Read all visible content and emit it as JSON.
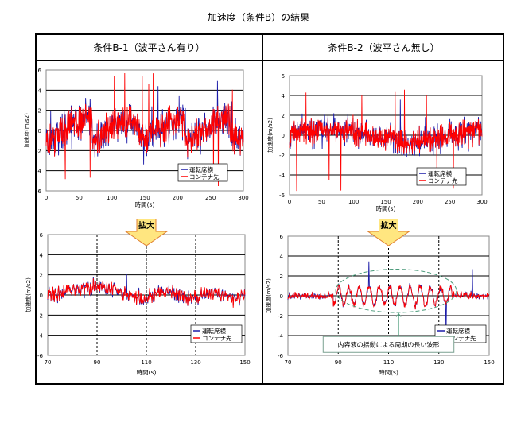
{
  "title": "加速度（条件B）の結果",
  "headers": [
    "条件B-1（波平さん有り）",
    "条件B-2（波平さん無し）"
  ],
  "zoom_label": "拡大",
  "chart_data": [
    {
      "type": "line",
      "panel": "B-1 full",
      "xlabel": "時間(s)",
      "ylabel": "加速度(m/s2)",
      "xlim": [
        0,
        300
      ],
      "ylim": [
        -6,
        6
      ],
      "xticks": [
        0,
        50,
        100,
        150,
        200,
        250,
        300
      ],
      "yticks": [
        -6,
        -4,
        -2,
        0,
        2,
        4,
        6
      ],
      "grid": "horizontal",
      "legend": "bottom-right",
      "series": [
        {
          "name": "運転席横",
          "color": "#1a1aa8"
        },
        {
          "name": "コンテナ先",
          "color": "#ff0000"
        }
      ]
    },
    {
      "type": "line",
      "panel": "B-2 full",
      "xlabel": "時間(s)",
      "ylabel": "加速度(m/s2)",
      "xlim": [
        0,
        300
      ],
      "ylim": [
        -6,
        6
      ],
      "xticks": [
        0,
        50,
        100,
        150,
        200,
        250,
        300
      ],
      "yticks": [
        -6,
        -4,
        -2,
        0,
        2,
        4,
        6
      ],
      "grid": "horizontal",
      "legend": "bottom-right",
      "series": [
        {
          "name": "運転席横",
          "color": "#1a1aa8"
        },
        {
          "name": "コンテナ先",
          "color": "#ff0000"
        }
      ]
    },
    {
      "type": "line",
      "panel": "B-1 zoom",
      "xlabel": "時間(s)",
      "ylabel": "加速度(m/s2)",
      "xlim": [
        70,
        150
      ],
      "ylim": [
        -6,
        6
      ],
      "xticks": [
        70,
        90,
        110,
        130,
        150
      ],
      "yticks": [
        -6,
        -4,
        -2,
        0,
        2,
        4,
        6
      ],
      "grid": "horizontal",
      "vlines": [
        90,
        110,
        130
      ],
      "legend": "bottom-right",
      "series": [
        {
          "name": "運転席横",
          "color": "#1a1aa8"
        },
        {
          "name": "コンテナ先",
          "color": "#ff0000"
        }
      ]
    },
    {
      "type": "line",
      "panel": "B-2 zoom",
      "xlabel": "時間(s)",
      "ylabel": "加速度(m/s2)",
      "xlim": [
        70,
        150
      ],
      "ylim": [
        -6,
        6
      ],
      "xticks": [
        70,
        90,
        110,
        130,
        150
      ],
      "yticks": [
        -6,
        -4,
        -2,
        0,
        2,
        4,
        6
      ],
      "grid": "horizontal",
      "vlines": [
        90,
        110,
        130
      ],
      "legend": "bottom-right",
      "annotation": "内容液の揺動による周期の長い波形",
      "series": [
        {
          "name": "運転席横",
          "color": "#1a1aa8"
        },
        {
          "name": "コンテナ先",
          "color": "#ff0000"
        }
      ]
    }
  ]
}
